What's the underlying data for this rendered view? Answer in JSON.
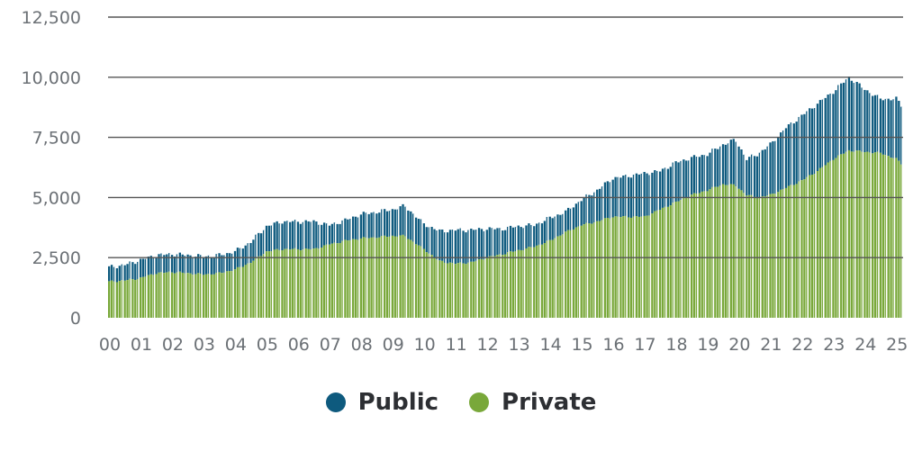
{
  "chart_data": {
    "type": "bar",
    "stacked": true,
    "x_tick_labels": [
      "00",
      "01",
      "02",
      "03",
      "04",
      "05",
      "06",
      "07",
      "08",
      "09",
      "10",
      "11",
      "12",
      "13",
      "14",
      "15",
      "16",
      "17",
      "18",
      "19",
      "20",
      "21",
      "22",
      "23",
      "24",
      "25"
    ],
    "y_tick_labels": [
      "0",
      "2,500",
      "5,000",
      "7,500",
      "10,000",
      "12,500"
    ],
    "ylim": [
      0,
      12500
    ],
    "xlim": [
      2000.0,
      2025.25
    ],
    "grid": "horizontal",
    "legend_position": "bottom-center",
    "colors": {
      "Public": "#0e5a7e",
      "Private": "#79a83a",
      "grid": "#555555"
    },
    "anchors": {
      "years": [
        2000.0,
        2000.5,
        2001.0,
        2001.5,
        2002.0,
        2002.5,
        2003.0,
        2003.5,
        2004.0,
        2004.5,
        2005.0,
        2005.5,
        2006.0,
        2006.5,
        2007.0,
        2007.5,
        2008.0,
        2008.5,
        2009.0,
        2009.4,
        2010.0,
        2010.5,
        2011.0,
        2011.5,
        2012.0,
        2012.5,
        2013.0,
        2013.5,
        2014.0,
        2014.5,
        2015.0,
        2015.5,
        2016.0,
        2016.5,
        2017.0,
        2017.5,
        2018.0,
        2018.5,
        2019.0,
        2019.5,
        2019.9,
        2020.25,
        2020.6,
        2021.0,
        2021.5,
        2022.0,
        2022.5,
        2023.0,
        2023.5,
        2024.0,
        2024.5,
        2025.0,
        2025.25
      ],
      "total": [
        2100,
        2200,
        2400,
        2600,
        2650,
        2600,
        2550,
        2600,
        2750,
        3150,
        3800,
        4000,
        4000,
        4000,
        3850,
        4050,
        4300,
        4400,
        4500,
        4650,
        3900,
        3600,
        3650,
        3650,
        3700,
        3700,
        3800,
        3850,
        4150,
        4400,
        4900,
        5300,
        5800,
        5900,
        6000,
        6100,
        6450,
        6650,
        6800,
        7200,
        7400,
        6600,
        6800,
        7200,
        7900,
        8400,
        8900,
        9400,
        10000,
        9500,
        9100,
        9100,
        8700
      ],
      "private": [
        1500,
        1550,
        1650,
        1850,
        1900,
        1850,
        1800,
        1850,
        2000,
        2300,
        2750,
        2850,
        2850,
        2850,
        3050,
        3200,
        3300,
        3350,
        3400,
        3400,
        2850,
        2350,
        2250,
        2300,
        2500,
        2650,
        2800,
        2950,
        3200,
        3550,
        3850,
        4000,
        4200,
        4200,
        4200,
        4500,
        4800,
        5100,
        5300,
        5550,
        5500,
        5100,
        5000,
        5100,
        5400,
        5700,
        6100,
        6600,
        6950,
        6900,
        6850,
        6600,
        6300
      ]
    }
  },
  "legend": [
    {
      "label": "Public",
      "color": "#0e5a7e"
    },
    {
      "label": "Private",
      "color": "#79a83a"
    }
  ]
}
